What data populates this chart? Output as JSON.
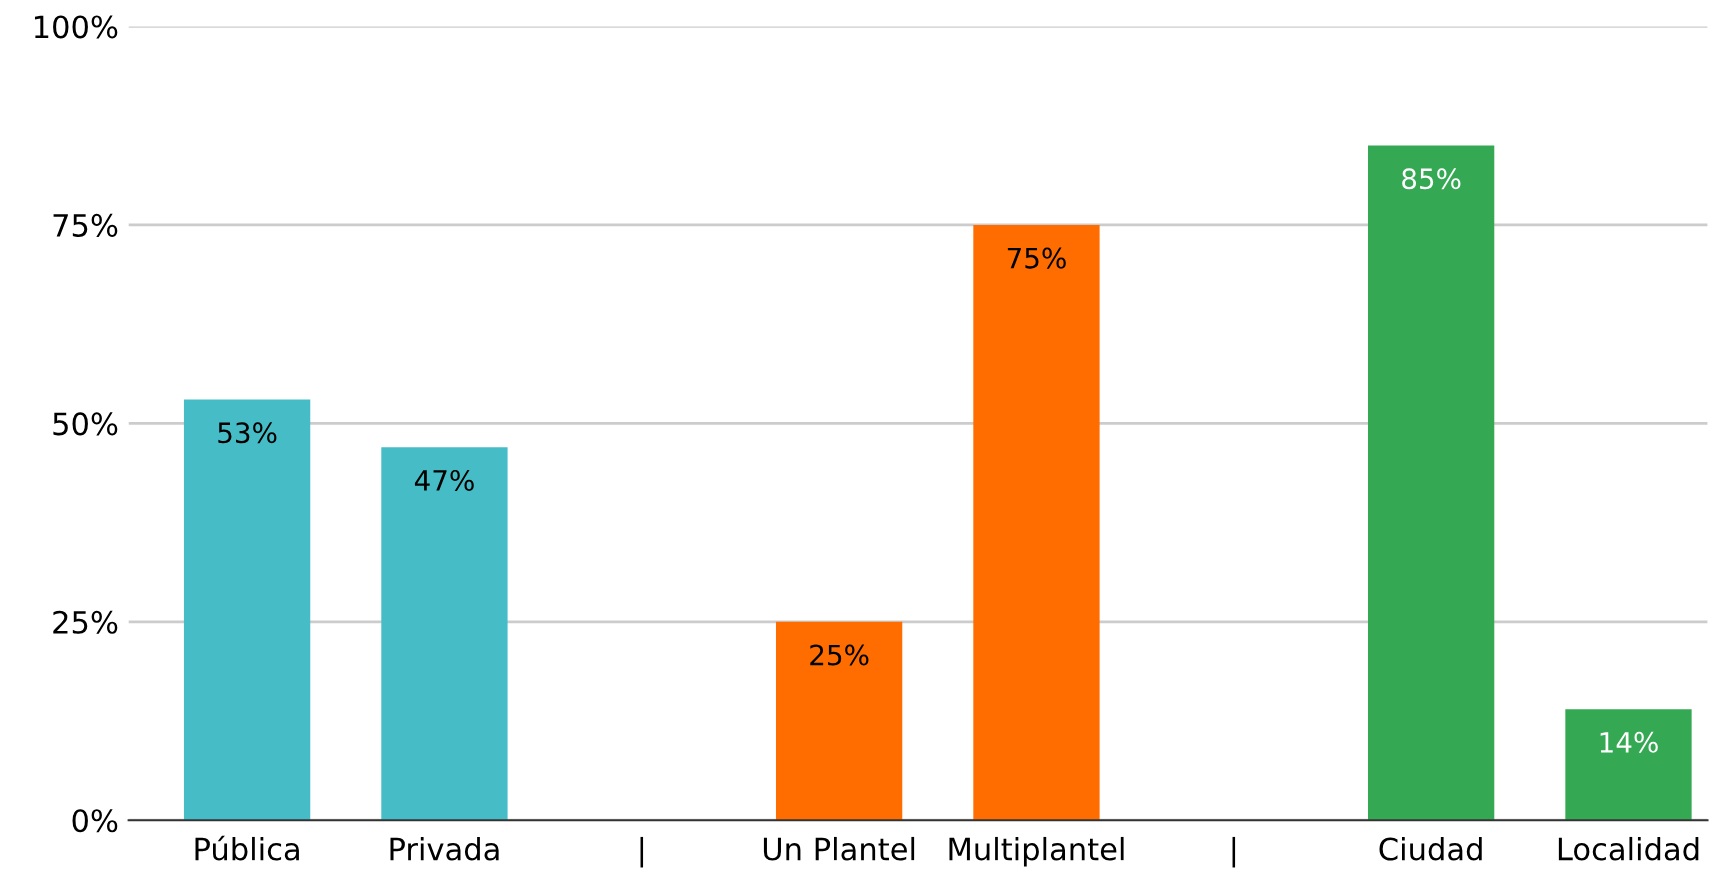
{
  "chart_data": {
    "type": "bar",
    "categories": [
      "Pública",
      "Privada",
      "|",
      "Un Plantel",
      "Multiplantel",
      "|",
      "Ciudad",
      "Localidad"
    ],
    "values": [
      53,
      47,
      null,
      25,
      75,
      null,
      85,
      14
    ],
    "colors": [
      "#46bdc6",
      "#46bdc6",
      null,
      "#ff6d01",
      "#ff6d01",
      null,
      "#34a853",
      "#34a853"
    ],
    "value_labels": [
      "53%",
      "47%",
      null,
      "25%",
      "75%",
      null,
      "85%",
      "14%"
    ],
    "ylim": [
      0,
      100
    ],
    "yticks": [
      {
        "value": 0,
        "label": "0%"
      },
      {
        "value": 25,
        "label": "25%"
      },
      {
        "value": 50,
        "label": "50%"
      },
      {
        "value": 75,
        "label": "75%"
      },
      {
        "value": 100,
        "label": "100%"
      }
    ],
    "grid": "y"
  }
}
